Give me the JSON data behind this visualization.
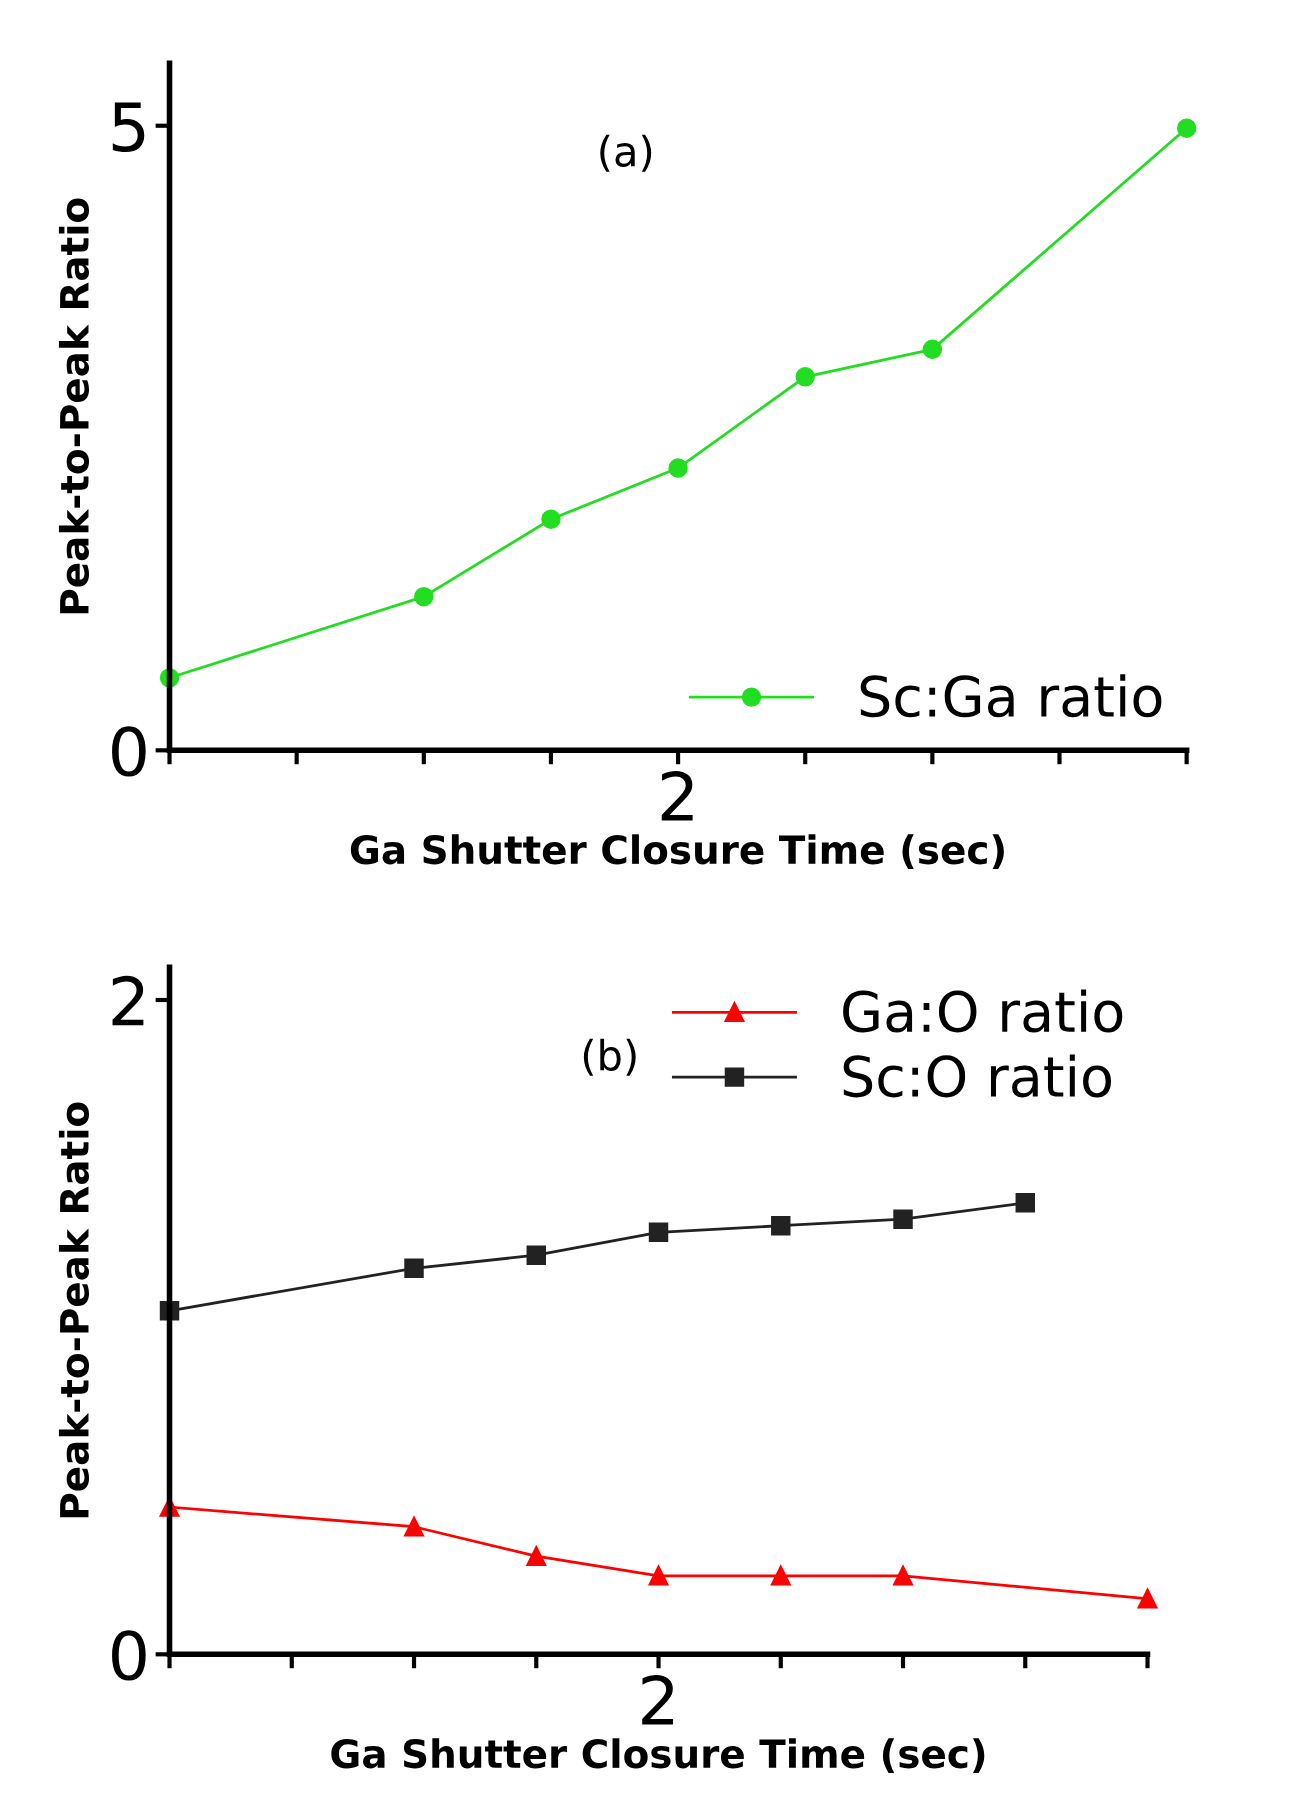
{
  "chart_data": [
    {
      "type": "line",
      "xlabel": "Ga Shutter Closure Time (sec)",
      "ylabel": "Peak-to-Peak Ratio",
      "annotations": [
        "(a)"
      ],
      "categories": [
        null,
        null,
        null,
        null,
        "2",
        null,
        null,
        null,
        null
      ],
      "ylim": [
        0,
        5.5
      ],
      "yticks": [
        0,
        5
      ],
      "legend": "bottom right",
      "grid": false,
      "series": [
        {
          "name": "Sc:Ga ratio",
          "color": "#22dd22",
          "marker": "circle",
          "line_style": "solid",
          "values": [
            0.58,
            null,
            1.23,
            1.85,
            2.26,
            2.99,
            3.21,
            null,
            4.98
          ]
        }
      ]
    },
    {
      "type": "line",
      "xlabel": "Ga Shutter Closure Time (sec)",
      "ylabel": "Peak-to-Peak Ratio",
      "annotations": [
        "(b)"
      ],
      "categories": [
        null,
        null,
        null,
        null,
        "2",
        null,
        null,
        null,
        null
      ],
      "ylim": [
        0,
        2.1
      ],
      "yticks": [
        0,
        2
      ],
      "legend": "top right",
      "grid": false,
      "series": [
        {
          "name": "Ga:O ratio",
          "color": "#ff0000",
          "marker": "triangle",
          "line_style": "solid",
          "values": [
            0.45,
            null,
            0.39,
            0.3,
            0.24,
            0.24,
            0.24,
            null,
            0.17
          ]
        },
        {
          "name": "Sc:O ratio",
          "color": "#222222",
          "marker": "square",
          "line_style": "solid",
          "values": [
            1.05,
            null,
            1.18,
            1.22,
            1.29,
            1.31,
            1.33,
            1.38,
            null
          ]
        }
      ]
    }
  ]
}
